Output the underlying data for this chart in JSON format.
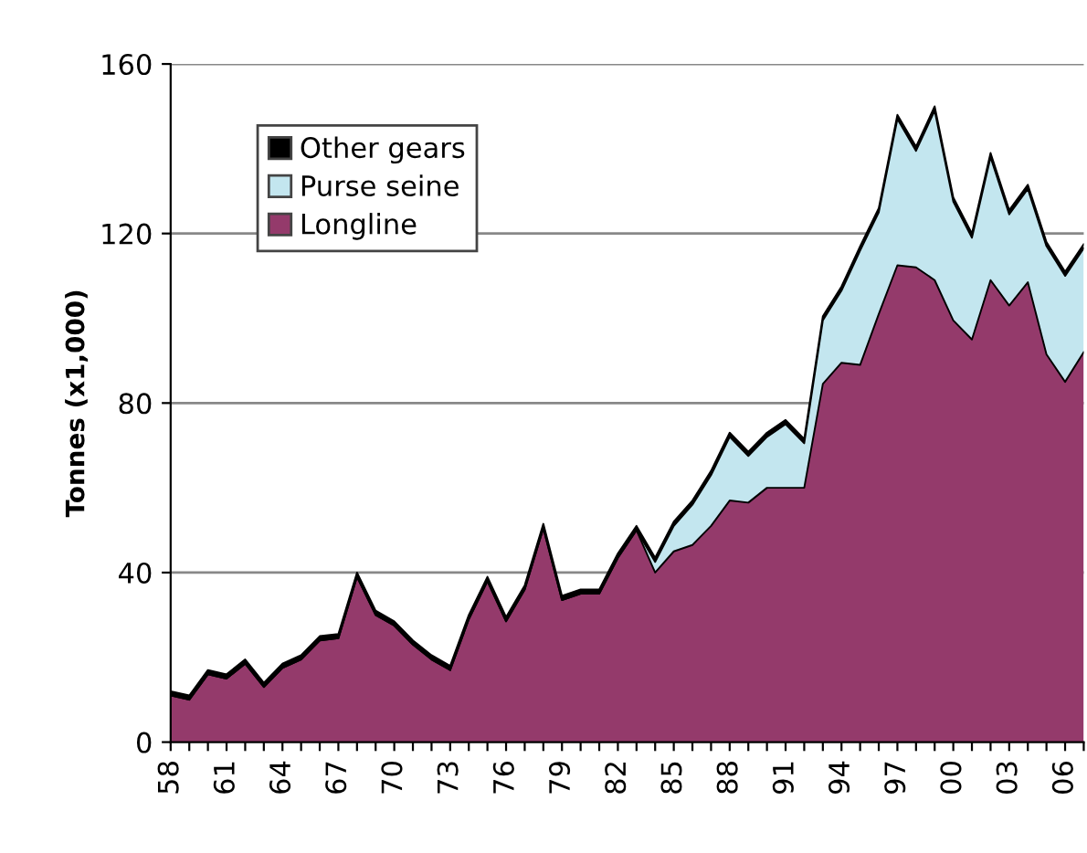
{
  "chart_data": {
    "type": "area",
    "stacked": true,
    "ylabel": "Tonnes (x1,000)",
    "categories": [
      "58",
      null,
      null,
      "61",
      null,
      null,
      "64",
      null,
      null,
      "67",
      null,
      null,
      "70",
      null,
      null,
      "73",
      null,
      null,
      "76",
      null,
      null,
      "79",
      null,
      null,
      "82",
      null,
      null,
      "85",
      null,
      null,
      "88",
      null,
      null,
      "91",
      null,
      null,
      "94",
      null,
      null,
      "97",
      null,
      null,
      "00",
      null,
      null,
      "03",
      null,
      null,
      "06",
      null
    ],
    "series": [
      {
        "name": "Longline",
        "color": "#943a6b",
        "values": [
          11,
          10,
          16,
          15,
          18.5,
          13,
          17.5,
          19.5,
          24,
          24.5,
          39,
          30,
          27.5,
          23,
          19.5,
          17,
          29,
          38,
          28.5,
          36,
          50.5,
          33.5,
          35,
          35,
          43.5,
          50,
          40,
          45,
          46.5,
          51,
          57,
          56.5,
          60,
          60,
          60,
          84.5,
          89.5,
          89,
          101,
          112.5,
          112,
          109,
          99.5,
          95,
          109,
          103,
          108.5,
          91.5,
          85,
          92
        ]
      },
      {
        "name": "Purse seine",
        "color": "#c3e6ef",
        "values": [
          0,
          0,
          0,
          0,
          0,
          0,
          0,
          0,
          0,
          0,
          0,
          0,
          0,
          0,
          0,
          0,
          0,
          0,
          0,
          0,
          0,
          0,
          0,
          0,
          0,
          0,
          2.5,
          6,
          9.5,
          12,
          15,
          11,
          12,
          15,
          10.5,
          15,
          17,
          27,
          24,
          34.5,
          27.5,
          40,
          28,
          24,
          29,
          21.5,
          22,
          25.5,
          25,
          24.5
        ]
      },
      {
        "name": "Other gears",
        "color": "#000000",
        "values": [
          1,
          1,
          1,
          1,
          1,
          1,
          1,
          1,
          1,
          1,
          1,
          1,
          1,
          1,
          1,
          1,
          1,
          1,
          1,
          1,
          1,
          1,
          1,
          1,
          1,
          1,
          1,
          1,
          1,
          1,
          1,
          1,
          1,
          1,
          1,
          1,
          1,
          1,
          1,
          1,
          1,
          1,
          1,
          1,
          1,
          1,
          1,
          1,
          1,
          1
        ]
      }
    ],
    "ylim": [
      0,
      160
    ],
    "yticks": [
      0,
      40,
      80,
      120,
      160
    ],
    "grid": "y",
    "legend": "top left"
  }
}
